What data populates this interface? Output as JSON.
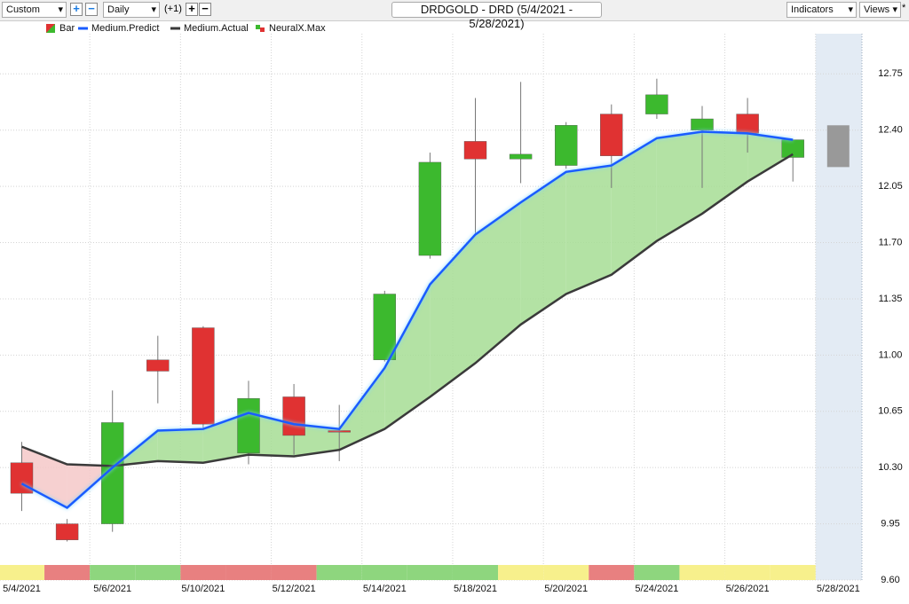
{
  "toolbar": {
    "symbol_set": "Custom",
    "period": "Daily",
    "offset": "(+1)",
    "title": "DRDGOLD - DRD (5/4/2021 - 5/28/2021)",
    "indicators": "Indicators",
    "views": "Views",
    "pin": "*"
  },
  "chart_data": {
    "type": "candlestick",
    "categories": [
      "5/4/2021",
      null,
      "5/6/2021",
      null,
      "5/10/2021",
      null,
      "5/12/2021",
      null,
      "5/14/2021",
      null,
      "5/18/2021",
      null,
      "5/20/2021",
      null,
      "5/24/2021",
      null,
      "5/26/2021",
      null,
      "5/28/2021"
    ],
    "series": [
      {
        "name": "Bar",
        "up_color": "#3cb92e",
        "down_color": "#e03232",
        "forecast_color": "#999999",
        "open": [
          10.33,
          9.95,
          9.95,
          10.97,
          11.17,
          10.39,
          10.74,
          10.53,
          10.97,
          11.62,
          12.33,
          12.22,
          12.18,
          12.5,
          12.5,
          12.4,
          12.5,
          12.23,
          null
        ],
        "high": [
          10.46,
          9.98,
          10.78,
          11.12,
          11.18,
          10.84,
          10.82,
          10.69,
          11.4,
          12.26,
          12.6,
          12.7,
          12.45,
          12.56,
          12.72,
          12.55,
          12.6,
          12.34,
          null
        ],
        "low": [
          10.03,
          9.84,
          9.9,
          10.7,
          10.54,
          10.32,
          10.38,
          10.34,
          10.96,
          11.6,
          11.76,
          12.07,
          12.16,
          12.04,
          12.47,
          12.04,
          12.26,
          12.08,
          null
        ],
        "close": [
          10.14,
          9.85,
          10.58,
          10.9,
          10.57,
          10.73,
          10.5,
          10.52,
          11.38,
          12.2,
          12.22,
          12.25,
          12.43,
          12.24,
          12.62,
          12.47,
          12.38,
          12.34,
          null
        ],
        "forecast_low": [
          null,
          null,
          null,
          null,
          null,
          null,
          null,
          null,
          null,
          null,
          null,
          null,
          null,
          null,
          null,
          null,
          null,
          null,
          12.17
        ],
        "forecast_high": [
          null,
          null,
          null,
          null,
          null,
          null,
          null,
          null,
          null,
          null,
          null,
          null,
          null,
          null,
          null,
          null,
          null,
          null,
          12.43
        ]
      },
      {
        "name": "Medium.Predict",
        "color": "#1a5cff",
        "values": [
          10.2,
          10.05,
          10.3,
          10.53,
          10.54,
          10.64,
          10.57,
          10.54,
          10.92,
          11.44,
          11.75,
          11.95,
          12.14,
          12.18,
          12.35,
          12.39,
          12.38,
          12.34,
          null
        ]
      },
      {
        "name": "Medium.Actual",
        "color": "#3a3a3a",
        "values": [
          10.43,
          10.32,
          10.31,
          10.34,
          10.33,
          10.38,
          10.37,
          10.41,
          10.54,
          10.74,
          10.95,
          11.19,
          11.38,
          11.5,
          11.71,
          11.88,
          12.08,
          12.25,
          null
        ]
      },
      {
        "name": "NeuralX.Max",
        "color": "#3cb92e",
        "colors": [
          "#f7f08c",
          "#e88080",
          "#8ed67e",
          "#8ed67e",
          "#e88080",
          "#e88080",
          "#e88080",
          "#8ed67e",
          "#8ed67e",
          "#8ed67e",
          "#8ed67e",
          "#f7f08c",
          "#f7f08c",
          "#e88080",
          "#8ed67e",
          "#f7f08c",
          "#f7f08c",
          "#f7f08c",
          null
        ]
      }
    ],
    "above_fill": "#a6dd94",
    "below_fill": "#f5c8c8",
    "forecast_shade": "#e3ebf4",
    "ylim": [
      9.6,
      13.0
    ],
    "yticks": [
      {
        "value": 9.6,
        "label": "9.60"
      },
      9.95,
      {
        "value": 10.3,
        "label": "10.30"
      },
      10.65,
      {
        "value": 11,
        "label": "11.00"
      },
      11.35,
      {
        "value": 11.7,
        "label": "11.70"
      },
      12.05,
      {
        "value": 12.4,
        "label": "12.40"
      },
      12.75
    ],
    "grid": true
  }
}
